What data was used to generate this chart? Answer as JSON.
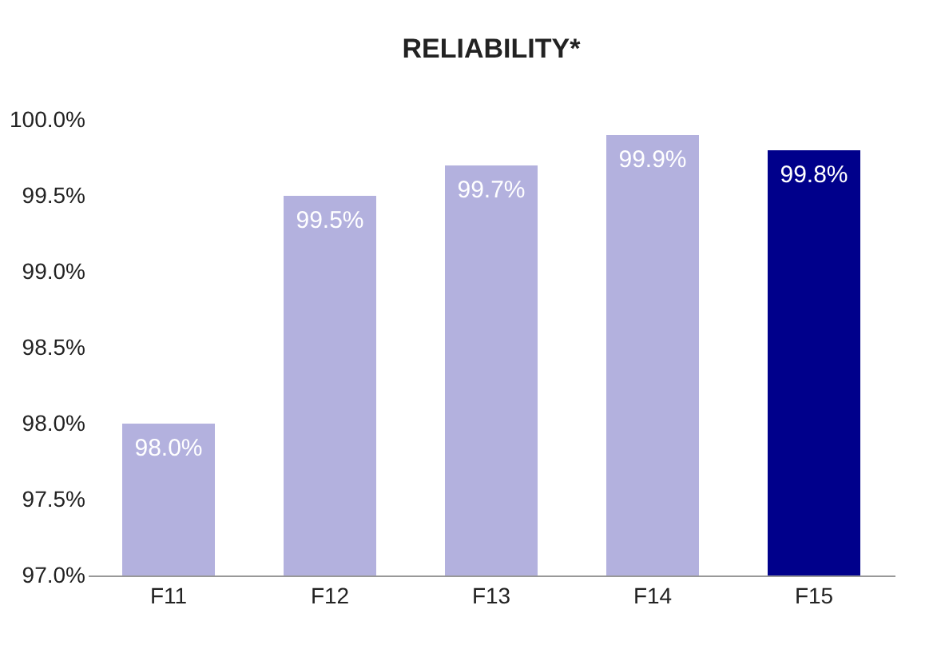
{
  "chart_data": {
    "type": "bar",
    "title": "RELIABILITY*",
    "categories": [
      "F11",
      "F12",
      "F13",
      "F14",
      "F15"
    ],
    "values": [
      98.0,
      99.5,
      99.7,
      99.9,
      99.8
    ],
    "colors": [
      "#b3b1de",
      "#b3b1de",
      "#b3b1de",
      "#b3b1de",
      "#00008b"
    ],
    "value_labels": [
      "98.0%",
      "99.5%",
      "99.7%",
      "99.9%",
      "99.8%"
    ],
    "ylim": [
      97.0,
      100.0
    ],
    "yticks": [
      {
        "value": 97.0,
        "label": "97.0%"
      },
      {
        "value": 97.5,
        "label": "97.5%"
      },
      {
        "value": 98.0,
        "label": "98.0%"
      },
      {
        "value": 98.5,
        "label": "98.5%"
      },
      {
        "value": 99.0,
        "label": "99.0%"
      },
      {
        "value": 99.5,
        "label": "99.5%"
      },
      {
        "value": 100.0,
        "label": "100.0%"
      }
    ],
    "grid": false
  }
}
